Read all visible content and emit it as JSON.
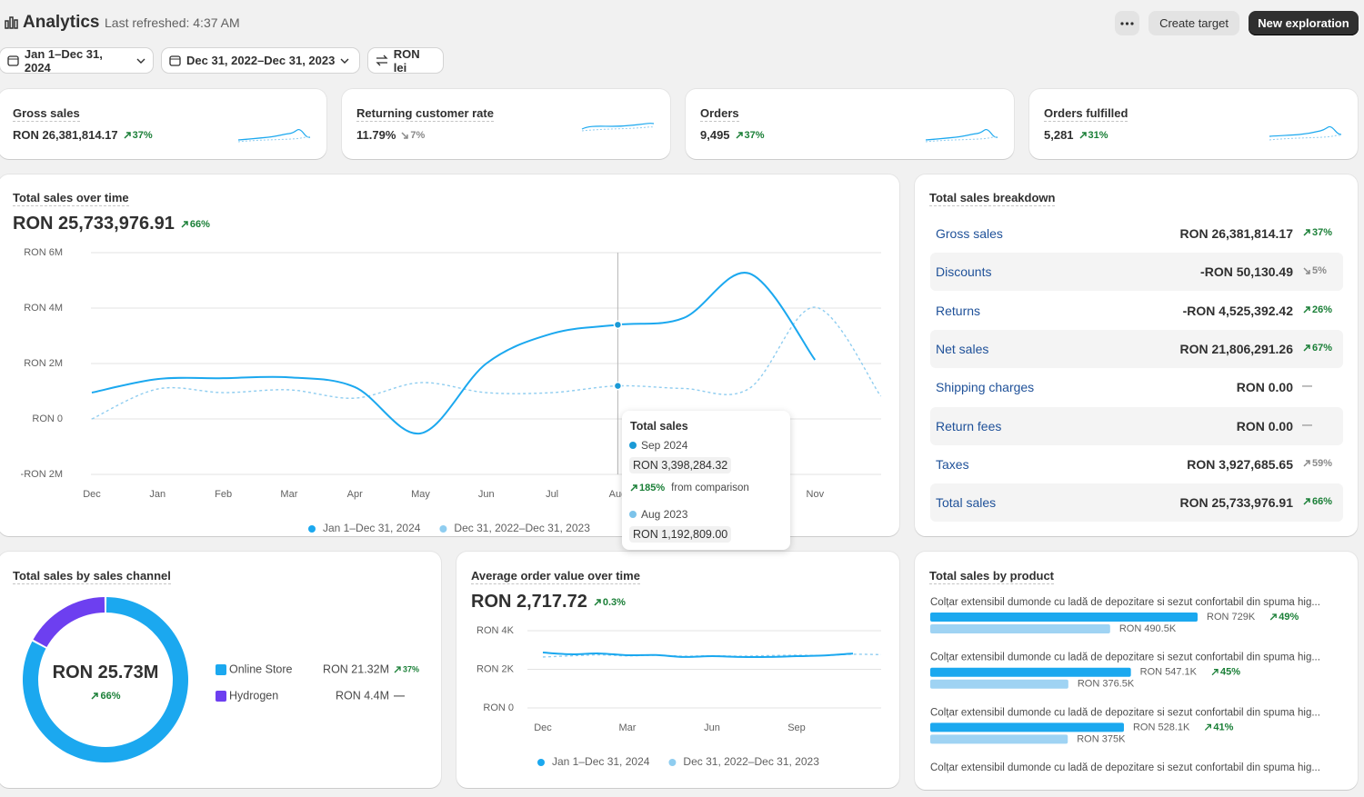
{
  "header": {
    "title": "Analytics",
    "subtitle": "Last refreshed: 4:37 AM",
    "actions": [
      "Create target",
      "New exploration"
    ]
  },
  "filters": [
    "Jan 1–Dec 31, 2024",
    "Dec 31, 2022–Dec 31, 2023",
    "RON lei"
  ],
  "kpis": [
    {
      "label": "Gross sales",
      "value": "RON 26,381,814.17",
      "change": {
        "text": "37%",
        "trend": "up",
        "color": "#1a7f37"
      }
    },
    {
      "label": "Returning customer rate",
      "value": "11.79%",
      "change": {
        "text": "7%",
        "trend": "down",
        "color": "#8a8a8a"
      }
    },
    {
      "label": "Orders",
      "value": "9,495",
      "change": {
        "text": "37%",
        "trend": "up",
        "color": "#1a7f37"
      }
    },
    {
      "label": "Orders fulfilled",
      "value": "5,281",
      "change": {
        "text": "31%",
        "trend": "up",
        "color": "#1a7f37"
      }
    }
  ],
  "breakdown": {
    "title": "Total sales breakdown",
    "rows": [
      {
        "label": "Gross sales",
        "value": "RON 26,381,814.17",
        "change": {
          "text": "37%",
          "trend": "up",
          "color": "#1a7f37"
        }
      },
      {
        "label": "Discounts",
        "value": "-RON 50,130.49",
        "change": {
          "text": "5%",
          "trend": "down",
          "color": "#8a8a8a"
        }
      },
      {
        "label": "Returns",
        "value": "-RON 4,525,392.42",
        "change": {
          "text": "26%",
          "trend": "up",
          "color": "#1a7f37"
        }
      },
      {
        "label": "Net sales",
        "value": "RON 21,806,291.26",
        "change": {
          "text": "67%",
          "trend": "up",
          "color": "#1a7f37"
        }
      },
      {
        "label": "Shipping charges",
        "value": "RON 0.00",
        "change": {
          "text": "—",
          "trend": "none",
          "color": "#8a8a8a"
        }
      },
      {
        "label": "Return fees",
        "value": "RON 0.00",
        "change": {
          "text": "—",
          "trend": "none",
          "color": "#8a8a8a"
        }
      },
      {
        "label": "Taxes",
        "value": "RON 3,927,685.65",
        "change": {
          "text": "59%",
          "trend": "up",
          "color": "#8a8a8a"
        }
      },
      {
        "label": "Total sales",
        "value": "RON 25,733,976.91",
        "change": {
          "text": "66%",
          "trend": "up",
          "color": "#1a7f37"
        }
      }
    ]
  },
  "tooltip": {
    "title": "Total sales",
    "current": {
      "period": "Sep 2024",
      "value": "RON 3,398,284.32",
      "change": {
        "text": "185%",
        "trend": "up",
        "color": "#1a7f37"
      },
      "note": "from comparison"
    },
    "previous": {
      "period": "Aug 2023",
      "value": "RON 1,192,809.00"
    }
  },
  "chart_data": [
    {
      "type": "line",
      "title": "Total sales over time",
      "value": "RON 25,733,976.91",
      "change": {
        "text": "66%",
        "trend": "up",
        "color": "#1a7f37"
      },
      "categories": [
        "Dec",
        "Jan",
        "Feb",
        "Mar",
        "Apr",
        "May",
        "Jun",
        "Jul",
        "Aug",
        "Sep",
        "Oct",
        "Nov",
        null
      ],
      "series": [
        {
          "name": "Jan 1–Dec 31, 2024",
          "color": "#1ba8ef",
          "dashed": false,
          "values": [
            950000,
            1440000,
            1470000,
            1500000,
            1150000,
            -520000,
            2000000,
            3080000,
            3398284.32,
            3640000,
            5250000,
            2130000,
            null
          ]
        },
        {
          "name": "Dec 31, 2022–Dec 31, 2023",
          "color": "#8fcdf0",
          "dashed": true,
          "values": [
            0,
            1080000,
            950000,
            1050000,
            750000,
            1310000,
            950000,
            950000,
            1192809,
            1100000,
            1100000,
            4030000,
            820000
          ]
        }
      ],
      "ylim": [
        -2000000,
        6000000
      ],
      "yticks": [
        {
          "value": -2000000,
          "label": "-RON 2M"
        },
        {
          "value": 0,
          "label": "RON 0"
        },
        {
          "value": 2000000,
          "label": "RON 2M"
        },
        {
          "value": 4000000,
          "label": "RON 4M"
        },
        {
          "value": 6000000,
          "label": "RON 6M"
        }
      ],
      "grid": true,
      "hover_index": 8
    },
    {
      "type": "pie",
      "donut": true,
      "title": "Total sales by sales channel",
      "center_value": "RON 25.73M",
      "center_change": {
        "text": "66%",
        "trend": "up",
        "color": "#1a7f37"
      },
      "categories": [
        "Online Store",
        "Hydrogen"
      ],
      "values": [
        21320000,
        4400000
      ],
      "value_labels": [
        "RON 21.32M",
        "RON 4.4M"
      ],
      "changes": [
        {
          "text": "37%",
          "trend": "up",
          "color": "#1a7f37"
        },
        {
          "text": "—",
          "trend": "none",
          "color": "#616161"
        }
      ],
      "colors": [
        "#1ba8ef",
        "#6d3ff0"
      ]
    },
    {
      "type": "line",
      "title": "Average order value over time",
      "value": "RON 2,717.72",
      "change": {
        "text": "0.3%",
        "trend": "up",
        "color": "#1a7f37"
      },
      "categories": [
        "Dec",
        null,
        null,
        "Mar",
        null,
        null,
        "Jun",
        null,
        null,
        "Sep",
        null,
        null,
        null
      ],
      "series": [
        {
          "name": "Jan 1–Dec 31, 2024",
          "color": "#1ba8ef",
          "dashed": false,
          "values": [
            2870,
            2780,
            2820,
            2730,
            2740,
            2640,
            2680,
            2640,
            2640,
            2680,
            2720,
            2820,
            null
          ]
        },
        {
          "name": "Dec 31, 2022–Dec 31, 2023",
          "color": "#8fcdf0",
          "dashed": true,
          "values": [
            2640,
            2700,
            2750,
            2700,
            2730,
            2680,
            2700,
            2680,
            2710,
            2730,
            2720,
            2780,
            2760
          ]
        }
      ],
      "ylim": [
        0,
        4000
      ],
      "yticks": [
        {
          "value": 0,
          "label": "RON 0"
        },
        {
          "value": 2000,
          "label": "RON 2K"
        },
        {
          "value": 4000,
          "label": "RON 4K"
        }
      ],
      "grid": true
    },
    {
      "type": "bar",
      "title": "Total sales by product",
      "categories": [
        "Colțar extensibil dumonde cu ladă de depozitare si sezut confortabil din spuma hig...",
        "Colțar extensibil dumonde cu ladă de depozitare si sezut confortabil din spuma hig...",
        "Colțar extensibil dumonde cu ladă de depozitare si sezut confortabil din spuma hig...",
        "Colțar extensibil dumonde cu ladă de depozitare si sezut confortabil din spuma hig..."
      ],
      "series": [
        {
          "color": "#1ba8ef",
          "values": [
            729000,
            547100,
            528100,
            null
          ],
          "value_labels": [
            "RON 729K",
            "RON 547.1K",
            "RON 528.1K",
            null
          ]
        },
        {
          "color": "#9fd3f3",
          "values": [
            490500,
            376500,
            375000,
            null
          ],
          "value_labels": [
            "RON 490.5K",
            "RON 376.5K",
            "RON 375K",
            null
          ]
        }
      ],
      "changes": [
        {
          "text": "49%",
          "trend": "up",
          "color": "#1a7f37"
        },
        {
          "text": "45%",
          "trend": "up",
          "color": "#1a7f37"
        },
        {
          "text": "41%",
          "trend": "up",
          "color": "#1a7f37"
        },
        null
      ]
    }
  ]
}
